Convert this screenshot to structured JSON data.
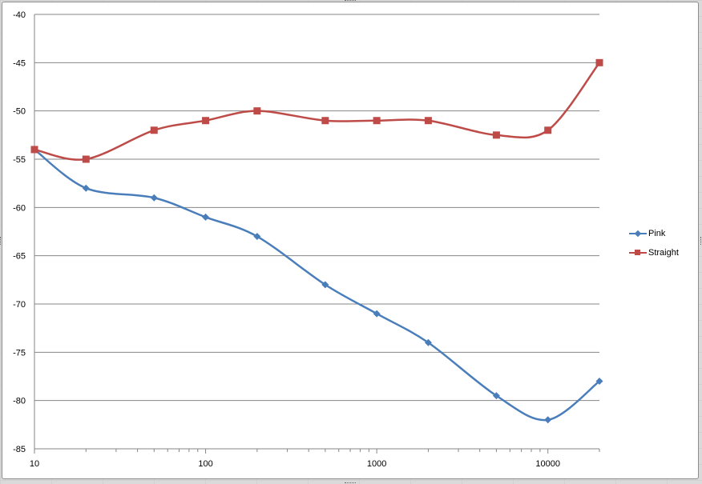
{
  "chart_data": {
    "type": "line",
    "x_scale": "log",
    "xlim": [
      10,
      20000
    ],
    "ylim": [
      -85,
      -40
    ],
    "y_ticks": [
      -40,
      -45,
      -50,
      -55,
      -60,
      -65,
      -70,
      -75,
      -80,
      -85
    ],
    "x_tick_labels": [
      "10",
      "100",
      "1000",
      "10000"
    ],
    "grid": "horizontal",
    "smoothed": true,
    "legend_position": "right",
    "series": [
      {
        "name": "Pink",
        "color": "#4a7ebb",
        "marker": "diamond",
        "x": [
          10,
          20,
          50,
          100,
          200,
          500,
          1000,
          2000,
          5000,
          10000,
          20000
        ],
        "y": [
          -54,
          -58,
          -59,
          -61,
          -63,
          -68,
          -71,
          -74,
          -79.5,
          -82,
          -78
        ]
      },
      {
        "name": "Straight",
        "color": "#be4b48",
        "marker": "square",
        "x": [
          10,
          20,
          50,
          100,
          200,
          500,
          1000,
          2000,
          5000,
          10000,
          20000
        ],
        "y": [
          -54,
          -55,
          -52,
          -51,
          -50,
          -51,
          -51,
          -51,
          -52.5,
          -52,
          -45
        ]
      }
    ]
  }
}
